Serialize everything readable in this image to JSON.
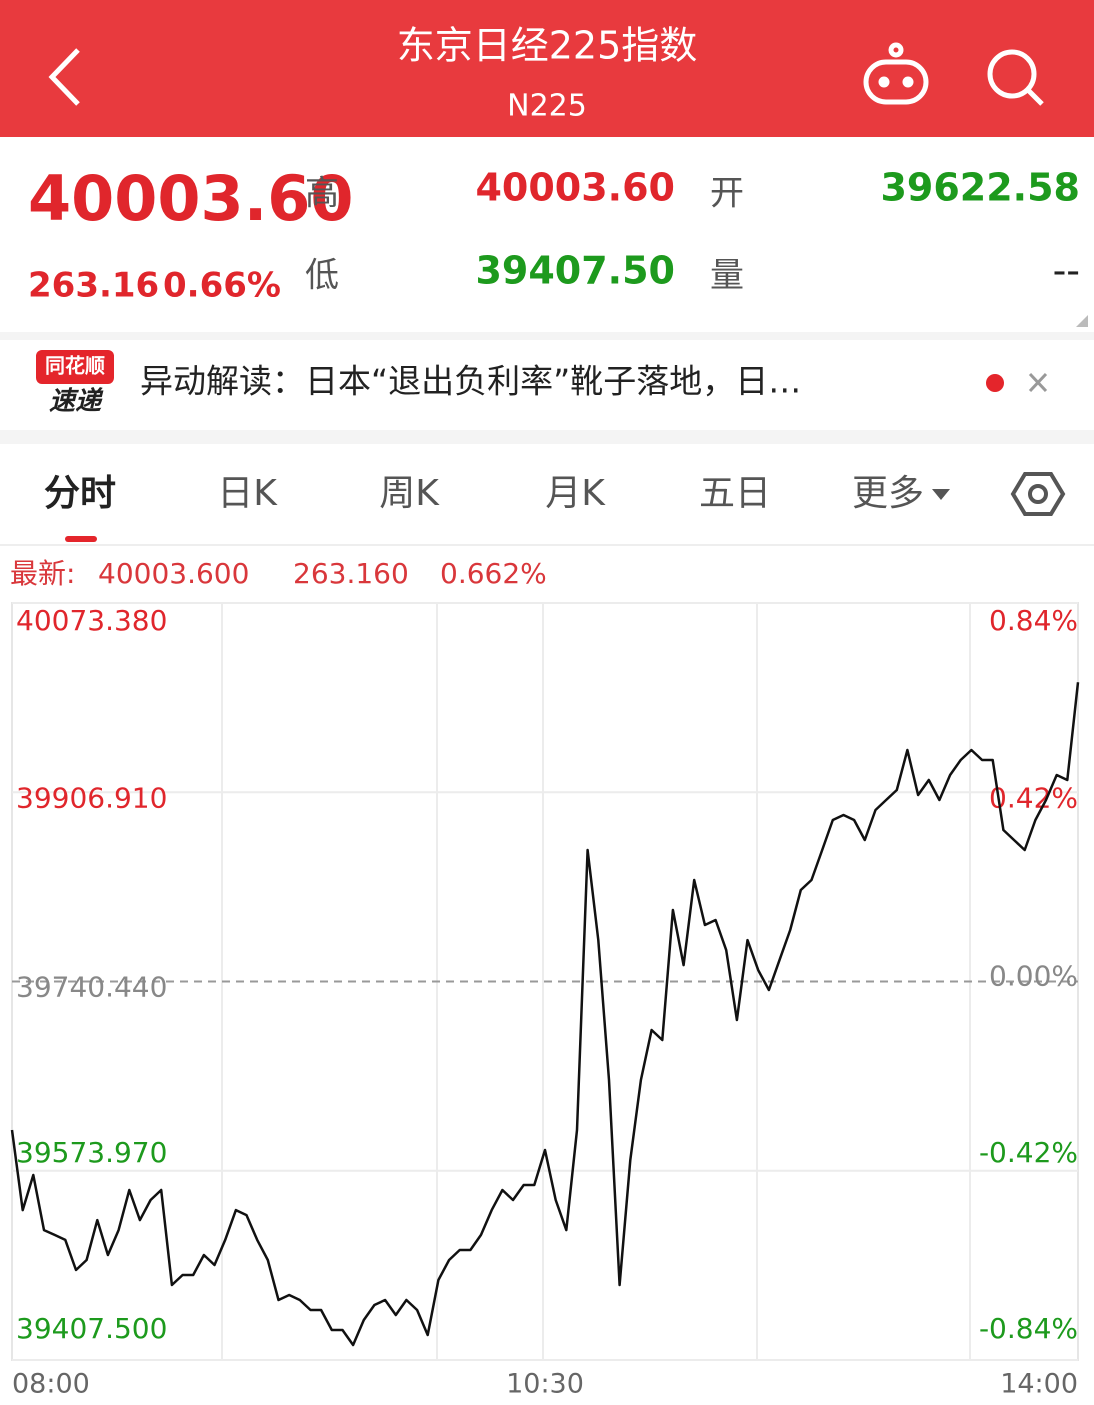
{
  "header": {
    "title": "东京日经225指数",
    "subtitle": "N225"
  },
  "quote": {
    "price": "40003.60",
    "change": "263.16",
    "percent": "0.66%",
    "high_label": "高",
    "high": "40003.60",
    "open_label": "开",
    "open": "39622.58",
    "low_label": "低",
    "low": "39407.50",
    "volume_label": "量",
    "volume": "--"
  },
  "news": {
    "badge_top": "同花顺",
    "badge_bottom": "速递",
    "text": "异动解读：日本“退出负利率”靴子落地，日…"
  },
  "tabs": [
    "分时",
    "日K",
    "周K",
    "月K",
    "五日",
    "更多"
  ],
  "chart_info": {
    "label": "最新:",
    "price": "40003.600",
    "change": "263.160",
    "percent": "0.662%"
  },
  "chart_data": {
    "type": "line",
    "color": "#111111",
    "categories": [
      "08:00",
      null,
      null,
      null,
      null,
      null,
      null,
      null,
      null,
      null,
      null,
      null,
      null,
      null,
      null,
      null,
      null,
      null,
      null,
      null,
      null,
      null,
      null,
      null,
      null,
      null,
      null,
      null,
      null,
      null,
      null,
      null,
      null,
      null,
      null,
      null,
      null,
      null,
      null,
      null,
      null,
      null,
      null,
      null,
      null,
      null,
      null,
      null,
      null,
      null,
      "10:30",
      null,
      null,
      null,
      null,
      null,
      null,
      null,
      null,
      null,
      null,
      null,
      null,
      null,
      null,
      null,
      null,
      null,
      null,
      null,
      null,
      null,
      null,
      null,
      null,
      null,
      null,
      null,
      null,
      null,
      null,
      null,
      null,
      null,
      null,
      null,
      null,
      null,
      null,
      null,
      null,
      null,
      null,
      null,
      null,
      null,
      null,
      null,
      null,
      null,
      "14:00"
    ],
    "values": [
      39609.8,
      39539.4,
      39570.2,
      39521.8,
      39517.5,
      39513.1,
      39486.7,
      39495.5,
      39530.6,
      39499.9,
      39521.8,
      39557,
      39530.6,
      39548.2,
      39557,
      39473.5,
      39482.3,
      39482.3,
      39499.9,
      39491.1,
      39513.1,
      39539.4,
      39535,
      39513.1,
      39495.5,
      39460.3,
      39464.7,
      39460.3,
      39451.5,
      39451.5,
      39433.9,
      39433.9,
      39420.7,
      39442.7,
      39455.9,
      39460.3,
      39447.1,
      39460.3,
      39451.5,
      39429.5,
      39477.9,
      39495.5,
      39504.3,
      39504.3,
      39517.5,
      39539.4,
      39557,
      39548.2,
      39561.4,
      39561.4,
      39592.2,
      39548.2,
      39521.8,
      39609.8,
      39856.1,
      39776.9,
      39653.8,
      39473.5,
      39583.4,
      39653.8,
      39697.8,
      39689,
      39803.3,
      39754.9,
      39829.7,
      39790.1,
      39794.5,
      39768.1,
      39706.6,
      39776.9,
      39750.5,
      39733,
      39759.3,
      39785.7,
      39820.9,
      39829.7,
      39856.1,
      39882.5,
      39886.9,
      39882.5,
      39864.9,
      39891.3,
      39900.1,
      39908.9,
      39944.1,
      39904.5,
      39917.7,
      39900.1,
      39922.1,
      39935.3,
      39944.1,
      39935.3,
      39935.3,
      39873.7,
      39864.9,
      39856.1,
      39882.5,
      39900.1,
      39922.1,
      39917.7,
      40003.6
    ],
    "ylim": [
      39407.5,
      40073.38
    ],
    "yticks": [
      {
        "value": 40073.38,
        "label": "40073.380"
      },
      {
        "value": 39906.91,
        "label": "39906.910"
      },
      {
        "value": 39740.44,
        "label": "39740.440"
      },
      {
        "value": 39573.97,
        "label": "39573.970"
      },
      {
        "value": 39407.5,
        "label": "39407.500"
      }
    ],
    "y2lim": [
      -0.84,
      0.84
    ],
    "y2ticks": [
      {
        "value": 0.84,
        "label": "0.84%"
      },
      {
        "value": 0.42,
        "label": "0.42%"
      },
      {
        "value": 0,
        "label": "0.00%"
      },
      {
        "value": -0.42,
        "label": "-0.42%"
      },
      {
        "value": -0.84,
        "label": "-0.84%"
      }
    ],
    "grid": true,
    "up_color": "#e0262c",
    "down_color": "#1d9a1d",
    "flat_color": "#888888"
  }
}
